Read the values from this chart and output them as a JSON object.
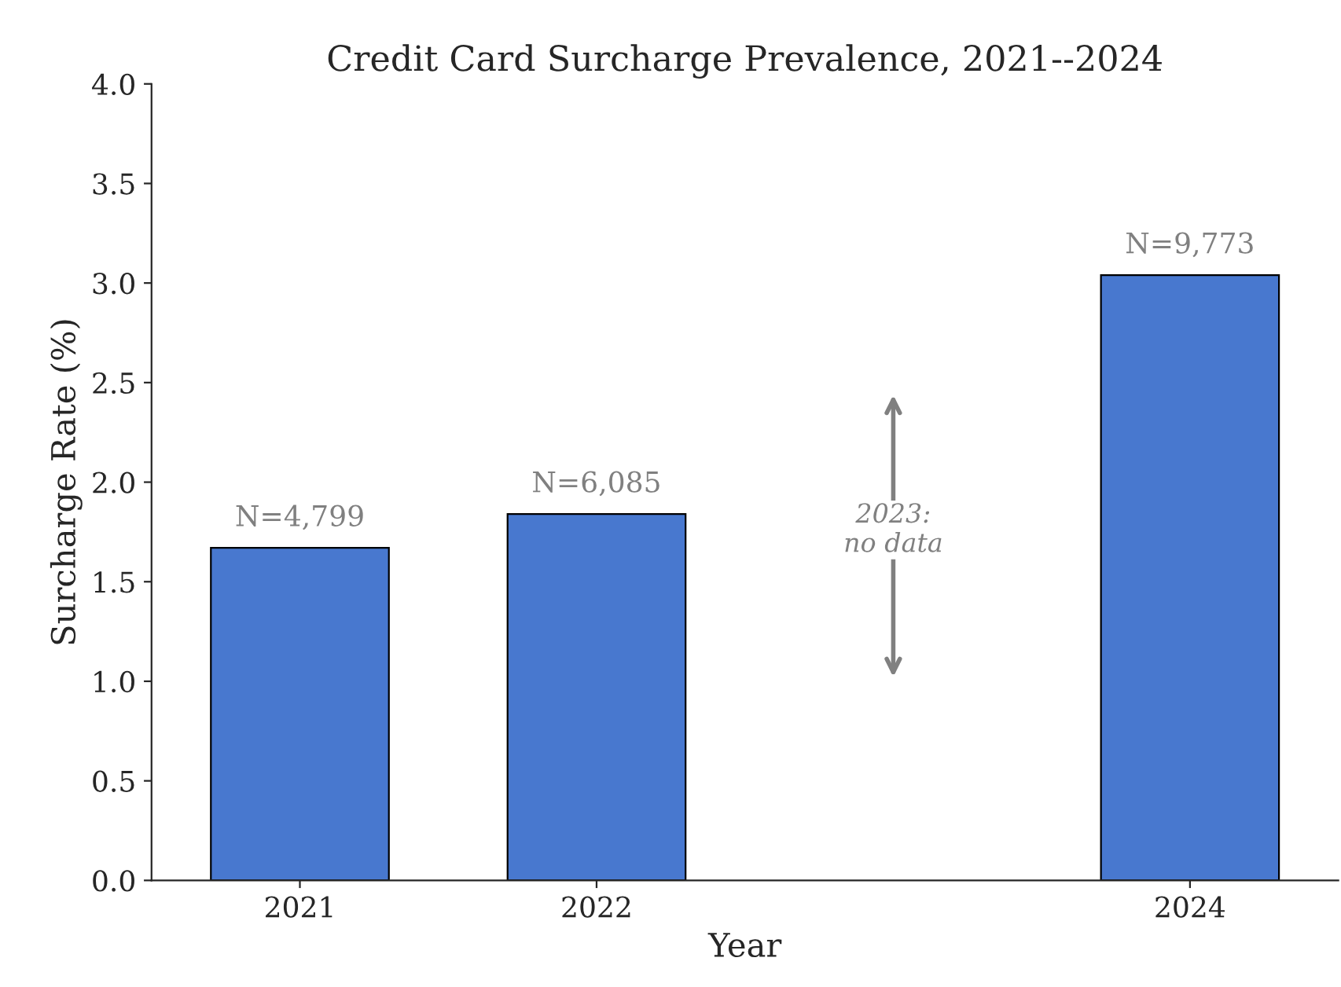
{
  "chart_data": {
    "type": "bar",
    "title": "Credit Card Surcharge Prevalence, 2021--2024",
    "xlabel": "Year",
    "ylabel": "Surcharge Rate (%)",
    "categories": [
      "2021",
      "2022",
      null,
      "2024"
    ],
    "values": [
      1.67,
      1.84,
      null,
      3.04
    ],
    "color": "#4878cf",
    "ylim": [
      0,
      4.0
    ],
    "yticks": [
      {
        "value": 0,
        "label": "0.0"
      },
      {
        "value": 0.5,
        "label": "0.5"
      },
      {
        "value": 1.0,
        "label": "1.0"
      },
      {
        "value": 1.5,
        "label": "1.5"
      },
      {
        "value": 2.0,
        "label": "2.0"
      },
      {
        "value": 2.5,
        "label": "2.5"
      },
      {
        "value": 3.0,
        "label": "3.0"
      },
      {
        "value": 3.5,
        "label": "3.5"
      },
      {
        "value": 4.0,
        "label": "4.0"
      }
    ],
    "annotations": [
      {
        "text": "N=4,799",
        "x": "2021",
        "y": 1.67
      },
      {
        "text": "N=6,085",
        "x": "2022",
        "y": 1.84
      },
      {
        "text": "N=9,773",
        "x": "2024",
        "y": 3.04
      },
      "2023:\nno data"
    ],
    "grid": false,
    "legend": false
  }
}
